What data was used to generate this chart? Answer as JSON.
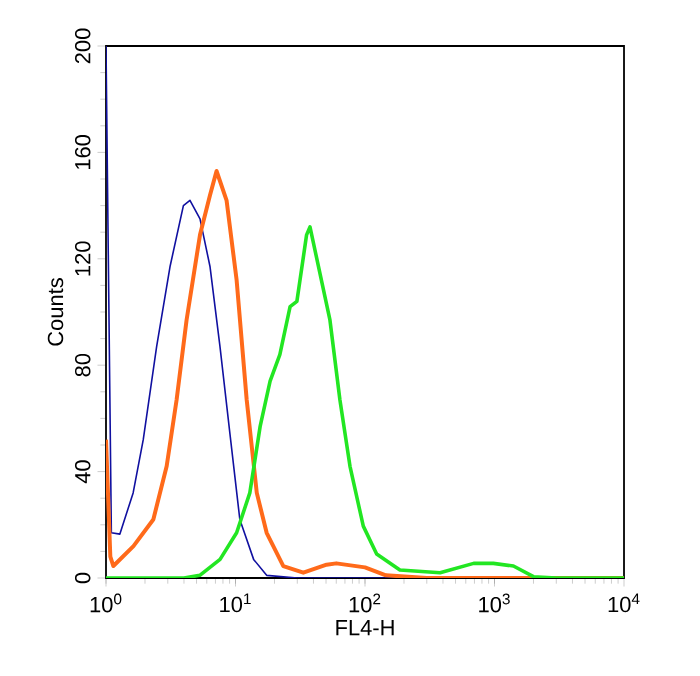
{
  "chart_data": {
    "type": "line",
    "xlabel": "FL4-H",
    "ylabel": "Counts",
    "log": "x",
    "xlim": [
      1,
      10000
    ],
    "ylim": [
      0,
      200
    ],
    "xticks": [
      {
        "value": 1,
        "label": "10$^{0}$"
      },
      {
        "value": 10,
        "label": "10$^{1}$"
      },
      {
        "value": 100,
        "label": "10$^{2}$"
      },
      {
        "value": 1000,
        "label": "10$^{3}$"
      },
      {
        "value": 10000,
        "label": "10$^{4}$"
      }
    ],
    "yticks": [
      0,
      40,
      80,
      120,
      160,
      200
    ],
    "grid": false,
    "marker": "none",
    "line_style": "solid",
    "series": [
      {
        "color": "#1010a0",
        "x": [
          1,
          1.1,
          1.28,
          1.62,
          1.94,
          2.46,
          3.12,
          3.96,
          4.45,
          5.32,
          6.36,
          7.59,
          9.07,
          10.8,
          13.8,
          17.4,
          30,
          100,
          10000
        ],
        "values": [
          200,
          17,
          16.5,
          32,
          52,
          87,
          117,
          140,
          142,
          135,
          117,
          87,
          54,
          22,
          7,
          1,
          0,
          0,
          0
        ]
      },
      {
        "color": "#ff6a1a",
        "x": [
          1,
          1.08,
          1.14,
          1.63,
          2.32,
          2.94,
          3.51,
          4.19,
          5.32,
          6.36,
          7.14,
          8.53,
          10.2,
          12.2,
          14.6,
          17.4,
          23.4,
          33.4,
          50.5,
          60,
          100,
          145,
          300,
          10000
        ],
        "values": [
          52,
          8,
          4.5,
          12,
          22,
          42,
          67,
          97,
          129,
          144,
          153,
          142,
          112,
          67,
          32,
          17,
          4.5,
          2,
          5,
          5.5,
          4,
          1,
          0,
          0
        ]
      },
      {
        "color": "#22e622",
        "x": [
          1,
          4,
          5.3,
          7.6,
          10.2,
          12.9,
          15.5,
          18.5,
          22,
          26.4,
          29.8,
          35.4,
          37.6,
          53.6,
          64,
          76.6,
          97,
          123,
          186,
          380,
          690,
          980,
          1400,
          2000,
          3000,
          10000
        ],
        "values": [
          0,
          0,
          1,
          7,
          17,
          32,
          57,
          74,
          84,
          102,
          104,
          129,
          132,
          97,
          67,
          42,
          19.5,
          9,
          3,
          2,
          5.5,
          5.5,
          4.5,
          0.5,
          0,
          0
        ]
      }
    ]
  }
}
